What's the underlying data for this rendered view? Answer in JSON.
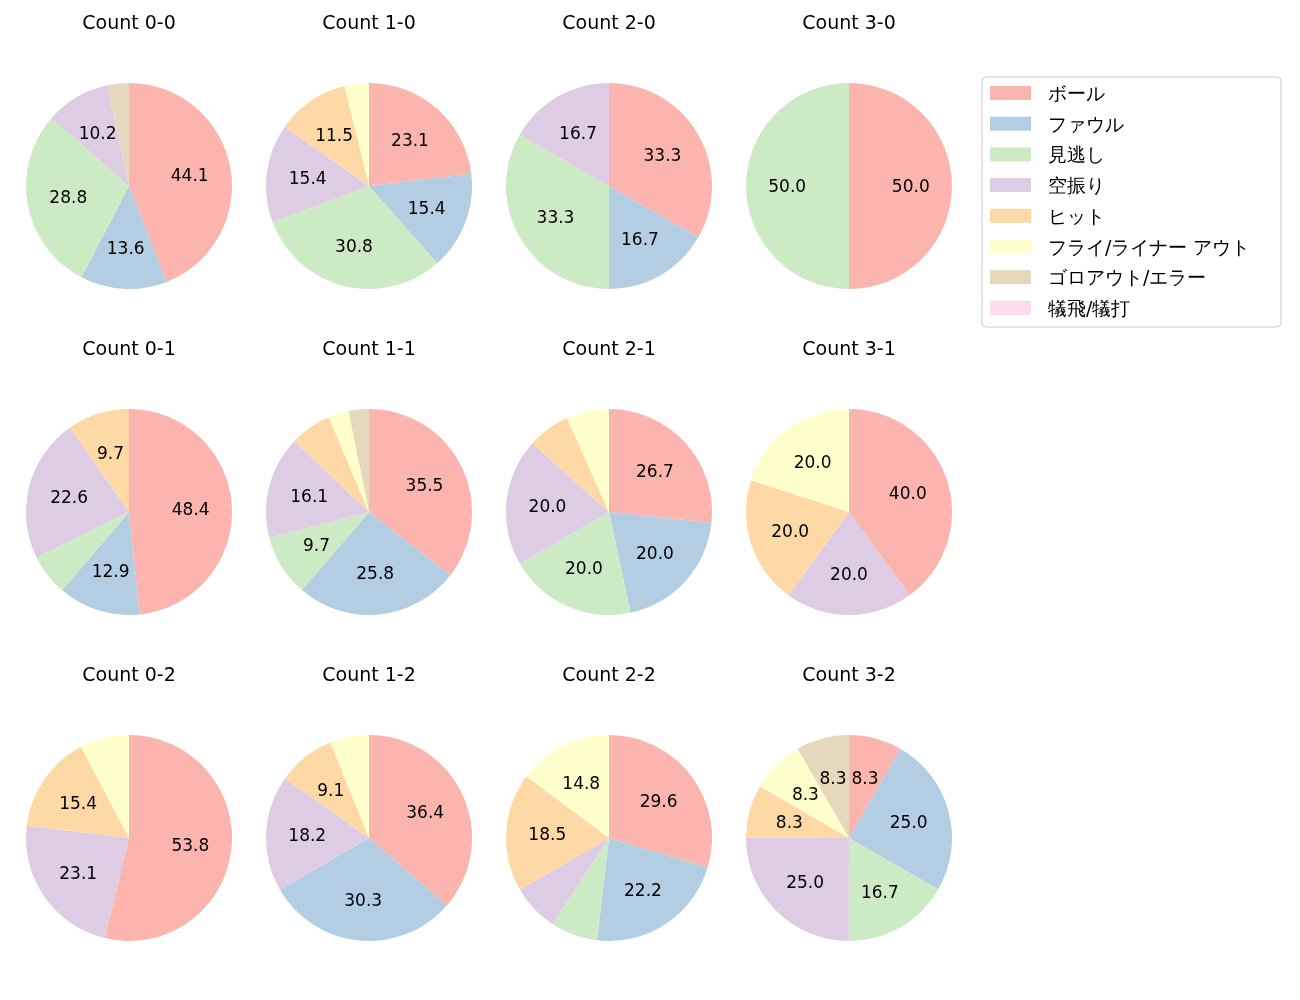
{
  "chart_data": [
    {
      "type": "pie",
      "title": "Count 0-0",
      "values": [
        44.1,
        13.6,
        28.8,
        10.2,
        0,
        0,
        3.4,
        0
      ],
      "value_labels": [
        "44.1",
        "13.6",
        "28.8",
        "10.2",
        null,
        null,
        null,
        null
      ]
    },
    {
      "type": "pie",
      "title": "Count 1-0",
      "values": [
        23.1,
        15.4,
        30.8,
        15.4,
        11.5,
        3.8,
        0,
        0
      ],
      "value_labels": [
        "23.1",
        "15.4",
        "30.8",
        "15.4",
        "11.5",
        null,
        null,
        null
      ]
    },
    {
      "type": "pie",
      "title": "Count 2-0",
      "values": [
        33.3,
        16.7,
        33.3,
        16.7,
        0,
        0,
        0,
        0
      ],
      "value_labels": [
        "33.3",
        "16.7",
        "33.3",
        "16.7",
        null,
        null,
        null,
        null
      ]
    },
    {
      "type": "pie",
      "title": "Count 3-0",
      "categories": [
        "ボール",
        "ファウル",
        "見逃し",
        "空振り",
        "ヒット",
        "フライ/ライナー アウト",
        "ゴロアウト/エラー",
        "犠飛/犠打"
      ],
      "values": [
        50.0,
        0,
        50.0,
        0,
        0,
        0,
        0,
        0
      ],
      "colors": [
        "#fbb4ae",
        "#b3cde3",
        "#ccebc5",
        "#decbe4",
        "#fed9a6",
        "#ffffcc",
        "#e5d8bd",
        "#fddaec"
      ],
      "value_labels": [
        "50.0",
        null,
        "50.0",
        null,
        null,
        null,
        null,
        null
      ],
      "legend": "right"
    },
    {
      "type": "pie",
      "title": "Count 0-1",
      "values": [
        48.4,
        12.9,
        6.5,
        22.6,
        9.7,
        0,
        0,
        0
      ],
      "value_labels": [
        "48.4",
        "12.9",
        null,
        "22.6",
        "9.7",
        null,
        null,
        null
      ]
    },
    {
      "type": "pie",
      "title": "Count 1-1",
      "values": [
        35.5,
        25.8,
        9.7,
        16.1,
        6.5,
        3.2,
        3.2,
        0
      ],
      "value_labels": [
        "35.5",
        "25.8",
        "9.7",
        "16.1",
        null,
        null,
        null,
        null
      ]
    },
    {
      "type": "pie",
      "title": "Count 2-1",
      "values": [
        26.7,
        20.0,
        20.0,
        20.0,
        6.7,
        6.7,
        0,
        0
      ],
      "value_labels": [
        "26.7",
        "20.0",
        "20.0",
        "20.0",
        null,
        null,
        null,
        null
      ]
    },
    {
      "type": "pie",
      "title": "Count 3-1",
      "values": [
        40.0,
        0,
        0,
        20.0,
        20.0,
        20.0,
        0,
        0
      ],
      "value_labels": [
        "40.0",
        null,
        null,
        "20.0",
        "20.0",
        "20.0",
        null,
        null
      ]
    },
    {
      "type": "pie",
      "title": "Count 0-2",
      "values": [
        53.8,
        0,
        0,
        23.1,
        15.4,
        7.7,
        0,
        0
      ],
      "value_labels": [
        "53.8",
        null,
        null,
        "23.1",
        "15.4",
        null,
        null,
        null
      ]
    },
    {
      "type": "pie",
      "title": "Count 1-2",
      "values": [
        36.4,
        30.3,
        0,
        18.2,
        9.1,
        6.1,
        0,
        0
      ],
      "value_labels": [
        "36.4",
        "30.3",
        null,
        "18.2",
        "9.1",
        null,
        null,
        null
      ]
    },
    {
      "type": "pie",
      "title": "Count 2-2",
      "values": [
        29.6,
        22.2,
        7.4,
        7.4,
        18.5,
        14.8,
        0,
        0
      ],
      "value_labels": [
        "29.6",
        "22.2",
        null,
        null,
        "18.5",
        "14.8",
        null,
        null
      ]
    },
    {
      "type": "pie",
      "title": "Count 3-2",
      "values": [
        8.3,
        25.0,
        16.7,
        25.0,
        8.3,
        8.3,
        8.3,
        0
      ],
      "value_labels": [
        "8.3",
        "25.0",
        "16.7",
        "25.0",
        "8.3",
        "8.3",
        "8.3",
        null
      ]
    }
  ]
}
